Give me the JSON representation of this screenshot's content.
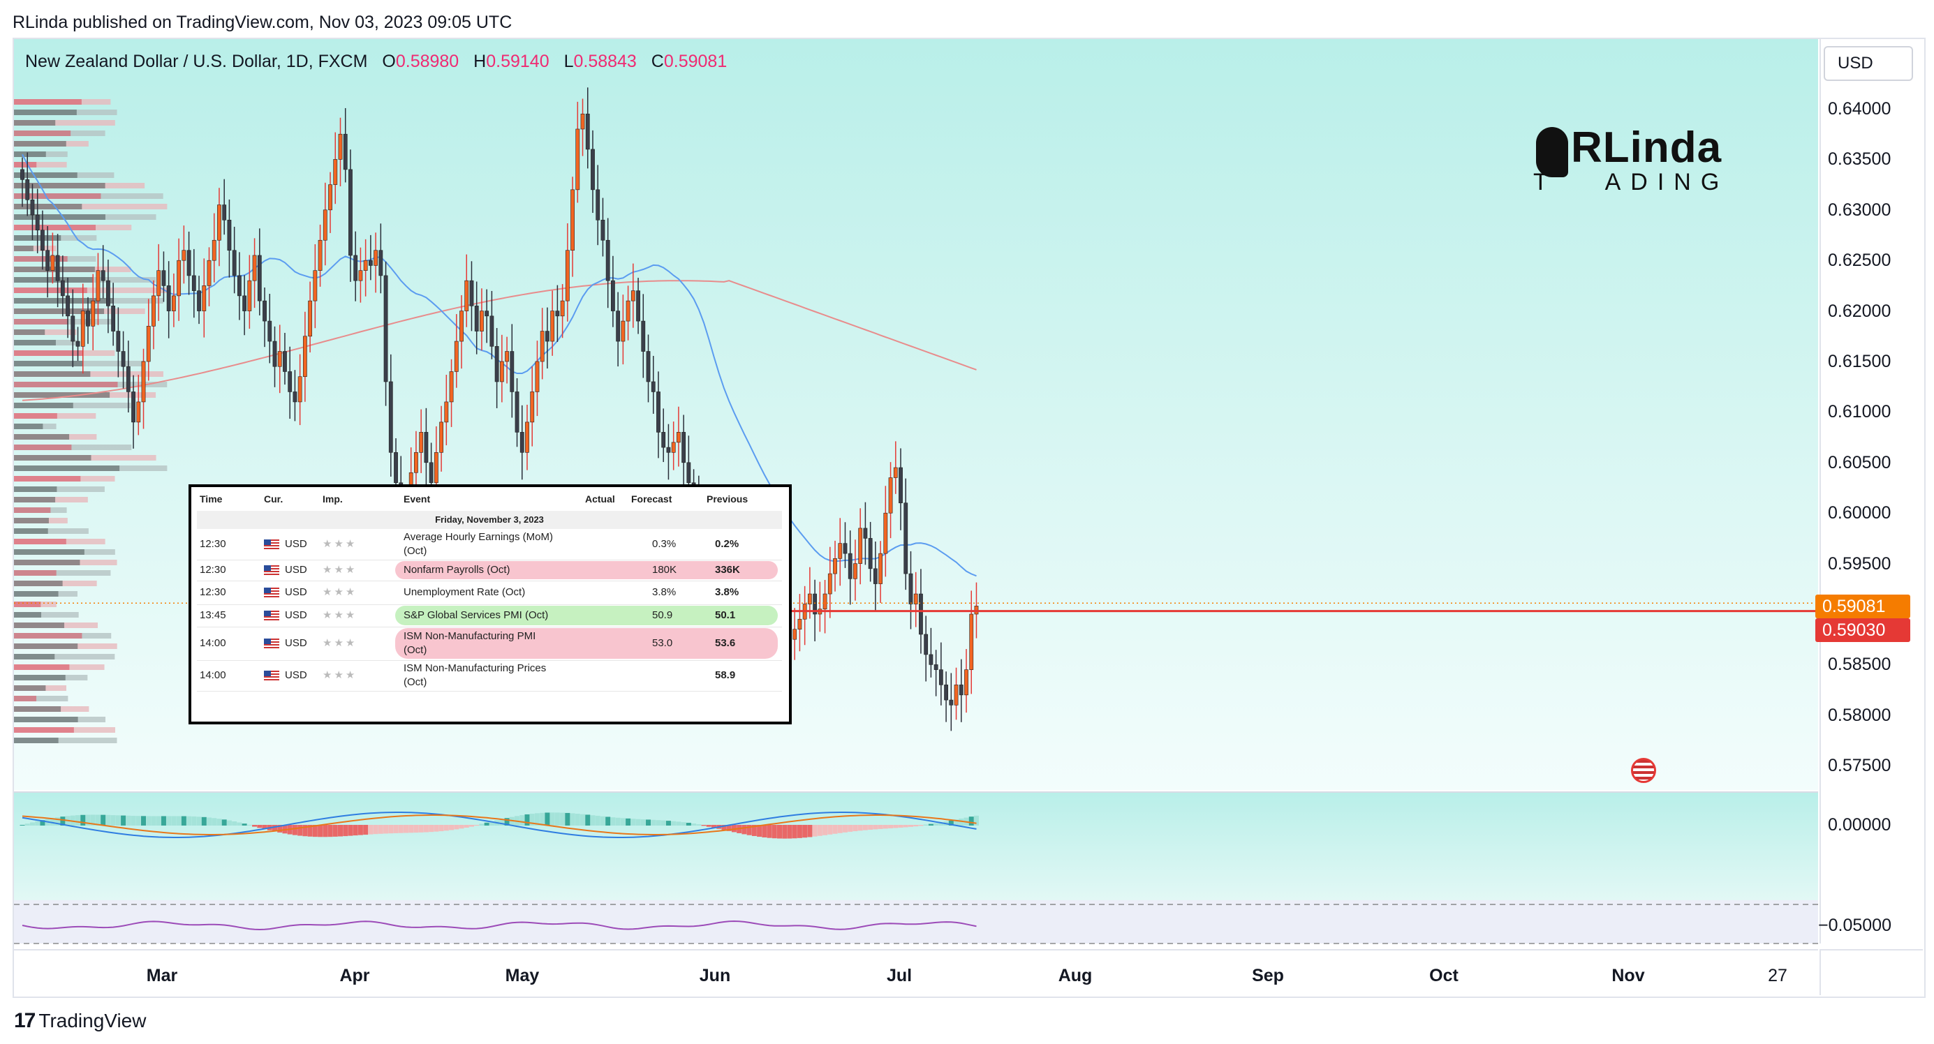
{
  "header": {
    "published": "RLinda published on TradingView.com, Nov 03, 2023 09:05 UTC"
  },
  "legend": {
    "symbol": "New Zealand Dollar / U.S. Dollar, 1D, FXCM",
    "o_label": "O",
    "o": "0.58980",
    "h_label": "H",
    "h": "0.59140",
    "l_label": "L",
    "l": "0.58843",
    "c_label": "C",
    "c": "0.59081"
  },
  "currency_button": "USD",
  "logo": {
    "line1": "RLinda",
    "line2": "T   ADING"
  },
  "footer": {
    "brand": "TradingView"
  },
  "colors": {
    "up": "#f26522",
    "down": "#3b3f4a",
    "ma_fast": "#5b9cf0",
    "ma_slow": "#e88c8c",
    "support": "#e53935",
    "price_badge": "#f57c00",
    "level_badge": "#e53935"
  },
  "chart_data": {
    "type": "candlestick",
    "title": "",
    "symbol": "NZDUSD",
    "interval": "1D",
    "ylim": [
      0.5725,
      0.6425
    ],
    "y_ticks": [
      "0.64000",
      "0.63500",
      "0.63000",
      "0.62500",
      "0.62000",
      "0.61500",
      "0.61000",
      "0.60500",
      "0.60000",
      "0.59500",
      "0.59000",
      "0.58500",
      "0.58000",
      "0.57500"
    ],
    "osc_ticks": [
      "0.00000",
      "−0.05000"
    ],
    "x_labels": [
      "Mar",
      "Apr",
      "May",
      "Jun",
      "Jul",
      "Aug",
      "Sep",
      "Oct",
      "Nov",
      "27"
    ],
    "last_price": "0.59081",
    "support_level": "0.59030",
    "support_value": 0.5903,
    "grid": false,
    "legend_position": "top-left",
    "closes": [
      0.633,
      0.631,
      0.6295,
      0.628,
      0.626,
      0.624,
      0.6255,
      0.623,
      0.6215,
      0.6195,
      0.617,
      0.6165,
      0.62,
      0.6185,
      0.621,
      0.624,
      0.623,
      0.6205,
      0.618,
      0.616,
      0.6145,
      0.612,
      0.609,
      0.611,
      0.615,
      0.6185,
      0.6215,
      0.624,
      0.6225,
      0.62,
      0.6215,
      0.625,
      0.626,
      0.6235,
      0.622,
      0.62,
      0.6225,
      0.625,
      0.627,
      0.6305,
      0.629,
      0.626,
      0.6235,
      0.6215,
      0.62,
      0.623,
      0.6255,
      0.621,
      0.619,
      0.617,
      0.6145,
      0.616,
      0.614,
      0.612,
      0.611,
      0.6135,
      0.6175,
      0.621,
      0.624,
      0.627,
      0.63,
      0.6325,
      0.635,
      0.6375,
      0.634,
      0.6255,
      0.623,
      0.624,
      0.625,
      0.6245,
      0.626,
      0.6235,
      0.613,
      0.606,
      0.603,
      0.6,
      0.601,
      0.604,
      0.606,
      0.608,
      0.605,
      0.603,
      0.606,
      0.609,
      0.611,
      0.614,
      0.617,
      0.62,
      0.623,
      0.6205,
      0.618,
      0.62,
      0.6195,
      0.6165,
      0.613,
      0.615,
      0.616,
      0.612,
      0.608,
      0.606,
      0.609,
      0.612,
      0.615,
      0.618,
      0.617,
      0.62,
      0.6195,
      0.621,
      0.626,
      0.632,
      0.638,
      0.6395,
      0.636,
      0.632,
      0.629,
      0.627,
      0.623,
      0.62,
      0.617,
      0.619,
      0.621,
      0.622,
      0.619,
      0.616,
      0.613,
      0.612,
      0.608,
      0.6065,
      0.606,
      0.607,
      0.608,
      0.605,
      0.603,
      0.601,
      0.599,
      0.5975,
      0.596,
      0.5945,
      0.5935,
      0.593,
      0.596,
      0.5975,
      0.595,
      0.593,
      0.591,
      0.592,
      0.5945,
      0.597,
      0.5955,
      0.5935,
      0.5905,
      0.588,
      0.5875,
      0.5885,
      0.5895,
      0.591,
      0.592,
      0.59,
      0.5905,
      0.592,
      0.594,
      0.5955,
      0.597,
      0.596,
      0.5935,
      0.595,
      0.5985,
      0.5975,
      0.5945,
      0.593,
      0.596,
      0.6,
      0.6035,
      0.6045,
      0.601,
      0.594,
      0.591,
      0.592,
      0.588,
      0.586,
      0.585,
      0.5845,
      0.583,
      0.5815,
      0.581,
      0.583,
      0.582,
      0.5845,
      0.59,
      0.5908
    ]
  },
  "calendar": {
    "headers": {
      "time": "Time",
      "cur": "Cur.",
      "imp": "Imp.",
      "event": "Event",
      "actual": "Actual",
      "forecast": "Forecast",
      "previous": "Previous"
    },
    "date": "Friday, November 3, 2023",
    "rows": [
      {
        "time": "12:30",
        "cur": "USD",
        "event1": "Average Hourly Earnings (MoM)",
        "event2": "(Oct)",
        "forecast": "0.3%",
        "previous": "0.2%",
        "highlight": "none"
      },
      {
        "time": "12:30",
        "cur": "USD",
        "event1": "Nonfarm Payrolls (Oct)",
        "event2": "",
        "forecast": "180K",
        "previous": "336K",
        "highlight": "pink"
      },
      {
        "time": "12:30",
        "cur": "USD",
        "event1": "Unemployment Rate (Oct)",
        "event2": "",
        "forecast": "3.8%",
        "previous": "3.8%",
        "highlight": "none"
      },
      {
        "time": "13:45",
        "cur": "USD",
        "event1": "S&P Global Services PMI (Oct)",
        "event2": "",
        "forecast": "50.9",
        "previous": "50.1",
        "highlight": "green"
      },
      {
        "time": "14:00",
        "cur": "USD",
        "event1": "ISM Non-Manufacturing PMI",
        "event2": "(Oct)",
        "forecast": "53.0",
        "previous": "53.6",
        "highlight": "pink"
      },
      {
        "time": "14:00",
        "cur": "USD",
        "event1": "ISM Non-Manufacturing Prices",
        "event2": "(Oct)",
        "forecast": "",
        "previous": "58.9",
        "highlight": "none"
      }
    ],
    "stars": "★★★"
  }
}
